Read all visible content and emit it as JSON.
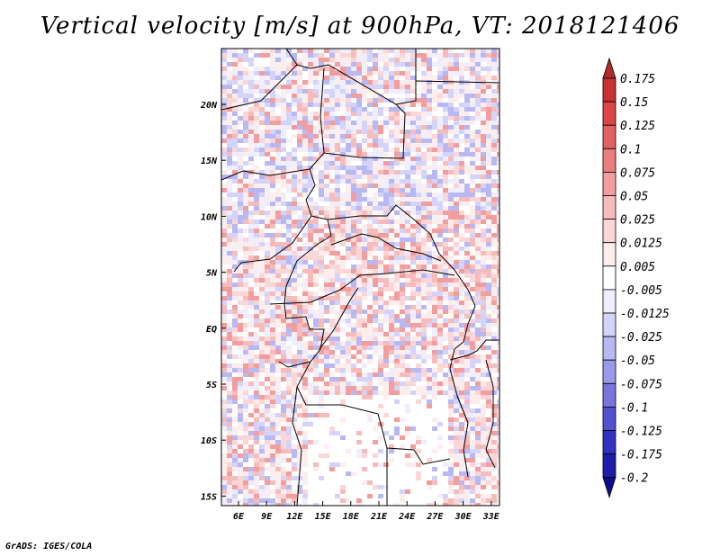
{
  "title": "Vertical velocity [m/s] at 900hPa, VT: 2018121406",
  "credit": "GrADS: IGES/COLA",
  "map": {
    "lon_labels": [
      "6E",
      "9E",
      "12E",
      "15E",
      "18E",
      "21E",
      "24E",
      "27E",
      "30E",
      "33E"
    ],
    "lat_labels": [
      "20N",
      "15N",
      "10N",
      "5N",
      "EQ",
      "5S",
      "10S",
      "15S"
    ]
  },
  "colorbar": {
    "levels": [
      "0.175",
      "0.15",
      "0.125",
      "0.1",
      "0.075",
      "0.05",
      "0.025",
      "0.0125",
      "0.005",
      "-0.005",
      "-0.0125",
      "-0.025",
      "-0.05",
      "-0.075",
      "-0.1",
      "-0.125",
      "-0.175",
      "-0.2"
    ],
    "colors": [
      "#b22a2a",
      "#c83232",
      "#dc4646",
      "#e56060",
      "#ec7d7d",
      "#f29e9e",
      "#f6bcbc",
      "#fad6d6",
      "#fdeeee",
      "#ffffff",
      "#eeeeff",
      "#d4d4fa",
      "#b8b8f2",
      "#9a9aea",
      "#7676de",
      "#5252d0",
      "#3232c0",
      "#1e1ea8",
      "#100c8c"
    ]
  }
}
